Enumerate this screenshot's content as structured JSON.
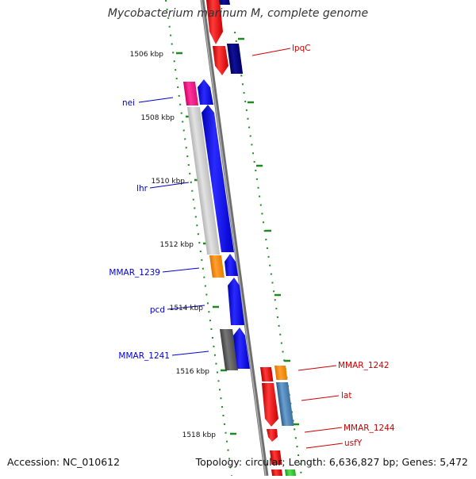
{
  "title": "Mycobacterium marinum M, complete genome",
  "footer": {
    "accession": "Accession: NC_010612",
    "topology": "Topology: circular; Length: 6,636,827 bp; Genes: 5,472"
  },
  "kbp_ticks": [
    "1506 kbp",
    "1508 kbp",
    "1510 kbp",
    "1512 kbp",
    "1514 kbp",
    "1516 kbp",
    "1518 kbp"
  ],
  "gene_labels_left": [
    "nei",
    "lhr",
    "MMAR_1239",
    "pcd",
    "MMAR_1241"
  ],
  "gene_labels_right": [
    "lpqC",
    "MMAR_1242",
    "lat",
    "MMAR_1244",
    "usfY"
  ],
  "colors": {
    "backbone": "#8c8c8c",
    "left_label": "#0000cc",
    "right_label": "#cc0000",
    "tick": "#1f8a1f",
    "red_gene": "#ff0000",
    "blue_gene": "#0000ff",
    "navy_gene": "#00007a",
    "magenta_gene": "#ff1a8c",
    "gray_gene": "#cfcfcf",
    "orange_gene": "#ff8c00",
    "dark_gray_gene": "#606060",
    "steel_gene": "#4682b4",
    "green_gene": "#33cc33"
  }
}
